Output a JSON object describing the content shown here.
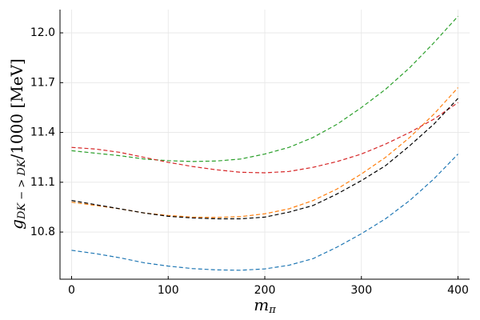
{
  "chart_data": {
    "type": "line",
    "xlabel": {
      "base": "m",
      "sub": "π"
    },
    "ylabel": {
      "base": "g",
      "sub": "DK − > DK",
      "rest": "/1000 [MeV]"
    },
    "x": [
      0,
      25,
      50,
      75,
      100,
      125,
      150,
      175,
      200,
      225,
      250,
      275,
      300,
      325,
      350,
      375,
      400
    ],
    "series": [
      {
        "color": "#1f77b4",
        "values": [
          10.69,
          10.67,
          10.645,
          10.615,
          10.595,
          10.58,
          10.572,
          10.57,
          10.578,
          10.6,
          10.64,
          10.71,
          10.79,
          10.88,
          10.99,
          11.12,
          11.27
        ]
      },
      {
        "color": "#ff7f0e",
        "values": [
          10.98,
          10.96,
          10.94,
          10.915,
          10.9,
          10.89,
          10.888,
          10.893,
          10.91,
          10.94,
          10.99,
          11.06,
          11.15,
          11.25,
          11.37,
          11.51,
          11.67
        ]
      },
      {
        "color": "#2ca02c",
        "values": [
          11.29,
          11.275,
          11.26,
          11.24,
          11.23,
          11.225,
          11.228,
          11.24,
          11.27,
          11.31,
          11.37,
          11.45,
          11.55,
          11.66,
          11.79,
          11.94,
          12.1
        ]
      },
      {
        "color": "#d62728",
        "values": [
          11.31,
          11.3,
          11.28,
          11.25,
          11.22,
          11.195,
          11.175,
          11.16,
          11.157,
          11.165,
          11.19,
          11.225,
          11.27,
          11.33,
          11.4,
          11.48,
          11.58
        ]
      },
      {
        "color": "#000000",
        "values": [
          10.99,
          10.965,
          10.94,
          10.915,
          10.895,
          10.885,
          10.88,
          10.88,
          10.89,
          10.92,
          10.96,
          11.03,
          11.11,
          11.2,
          11.32,
          11.45,
          11.605
        ]
      }
    ],
    "xlim": [
      -12,
      412
    ],
    "xticks": [
      0,
      100,
      200,
      300,
      400
    ],
    "ylim": [
      10.516,
      12.14
    ],
    "yticks": [
      10.8,
      11.1,
      11.4,
      11.7,
      {
        "value": 12,
        "label": "12.0"
      }
    ],
    "grid": true,
    "dashed": true
  }
}
